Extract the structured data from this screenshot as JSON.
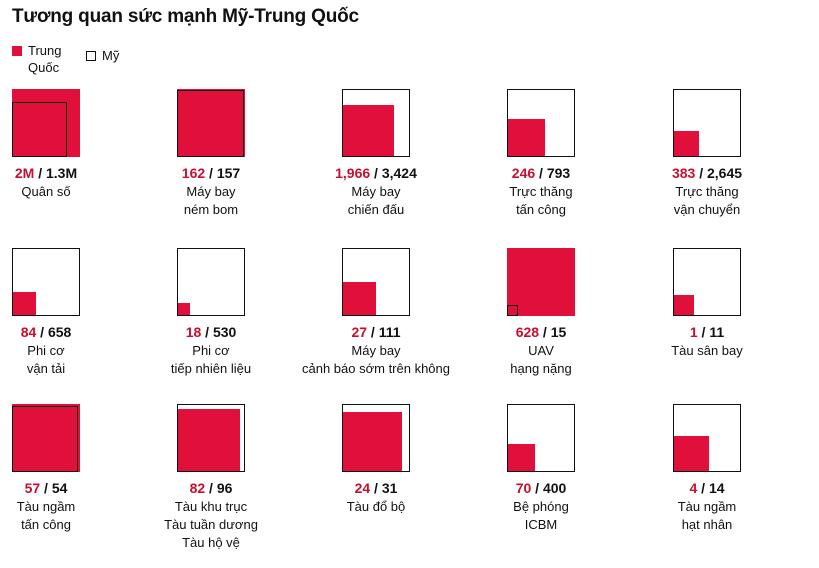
{
  "title": "Tương quan sức mạnh Mỹ-Trung Quốc",
  "legend": [
    {
      "label": "Trung Quốc",
      "color": "#e0103b",
      "series": "china"
    },
    {
      "label": "Mỹ",
      "color": "#ffffff",
      "series": "usa"
    }
  ],
  "colors": {
    "china": "#e0103b",
    "china_text": "#c8102e",
    "usa_border": "#111111"
  },
  "chart_data": {
    "type": "proportional-square-grid",
    "title": "Tương quan sức mạnh Mỹ-Trung Quốc",
    "series": [
      {
        "name": "Trung Quốc",
        "key": "china"
      },
      {
        "name": "Mỹ",
        "key": "usa"
      }
    ],
    "items": [
      {
        "china_label": "2M",
        "usa_label": "1.3M",
        "china": 2000000,
        "usa": 1300000,
        "label": [
          "Quân số"
        ]
      },
      {
        "china_label": "162",
        "usa_label": "157",
        "china": 162,
        "usa": 157,
        "label": [
          "Máy bay",
          "ném bom"
        ]
      },
      {
        "china_label": "1,966",
        "usa_label": "3,424",
        "china": 1966,
        "usa": 3424,
        "label": [
          "Máy bay",
          "chiến đấu"
        ]
      },
      {
        "china_label": "246",
        "usa_label": "793",
        "china": 246,
        "usa": 793,
        "label": [
          "Trực thăng",
          "tấn công"
        ]
      },
      {
        "china_label": "383",
        "usa_label": "2,645",
        "china": 383,
        "usa": 2645,
        "label": [
          "Trực thăng",
          "vận chuyển"
        ]
      },
      {
        "china_label": "84",
        "usa_label": "658",
        "china": 84,
        "usa": 658,
        "label": [
          "Phi cơ",
          "vận tải"
        ]
      },
      {
        "china_label": "18",
        "usa_label": "530",
        "china": 18,
        "usa": 530,
        "label": [
          "Phi cơ",
          "tiếp nhiên liệu"
        ]
      },
      {
        "china_label": "27",
        "usa_label": "111",
        "china": 27,
        "usa": 111,
        "label": [
          "Máy bay",
          "cảnh báo sớm trên không"
        ]
      },
      {
        "china_label": "628",
        "usa_label": "15",
        "china": 628,
        "usa": 15,
        "label": [
          "UAV",
          "hạng nặng"
        ]
      },
      {
        "china_label": "1",
        "usa_label": "11",
        "china": 1,
        "usa": 11,
        "label": [
          "Tàu sân bay"
        ]
      },
      {
        "china_label": "57",
        "usa_label": "54",
        "china": 57,
        "usa": 54,
        "label": [
          "Tàu ngầm",
          "tấn công"
        ]
      },
      {
        "china_label": "82",
        "usa_label": "96",
        "china": 82,
        "usa": 96,
        "label": [
          "Tàu khu trục",
          "Tàu tuần dương",
          "Tàu hộ vệ"
        ]
      },
      {
        "china_label": "24",
        "usa_label": "31",
        "china": 24,
        "usa": 31,
        "label": [
          "Tàu đổ bộ"
        ]
      },
      {
        "china_label": "70",
        "usa_label": "400",
        "china": 70,
        "usa": 400,
        "label": [
          "Bệ phóng",
          "ICBM"
        ]
      },
      {
        "china_label": "4",
        "usa_label": "14",
        "china": 4,
        "usa": 14,
        "label": [
          "Tàu ngầm",
          "hạt nhân"
        ]
      }
    ]
  }
}
